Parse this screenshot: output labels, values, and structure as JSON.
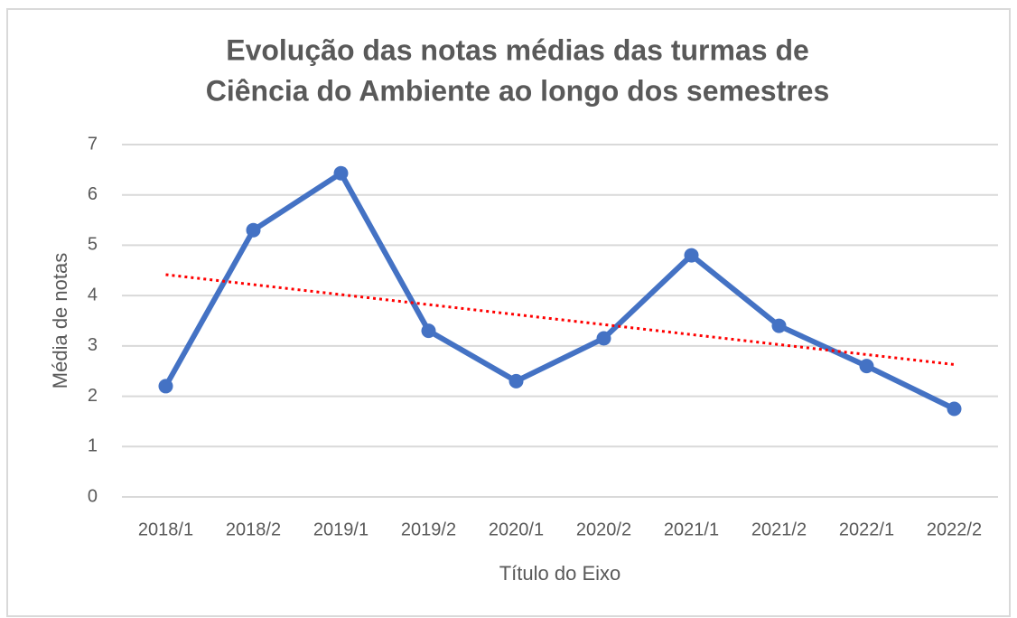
{
  "chart_data": {
    "type": "line",
    "title": [
      "Evolução das notas médias das turmas de",
      "Ciência do Ambiente ao longo dos semestres"
    ],
    "x_label": "Título do Eixo",
    "y_label": "Média de notas",
    "categories": [
      "2018/1",
      "2018/2",
      "2019/1",
      "2019/2",
      "2020/1",
      "2020/2",
      "2021/1",
      "2021/2",
      "2022/1",
      "2022/2"
    ],
    "values": [
      2.2,
      5.3,
      6.43,
      3.3,
      2.3,
      3.15,
      4.8,
      3.4,
      2.6,
      1.75
    ],
    "color": "#4472c4",
    "trendline": {
      "kind": "linear",
      "color": "#ff0000"
    },
    "ylim": [
      0,
      7
    ],
    "yticks": [
      0,
      1,
      2,
      3,
      4,
      5,
      6,
      7
    ],
    "grid": true
  }
}
